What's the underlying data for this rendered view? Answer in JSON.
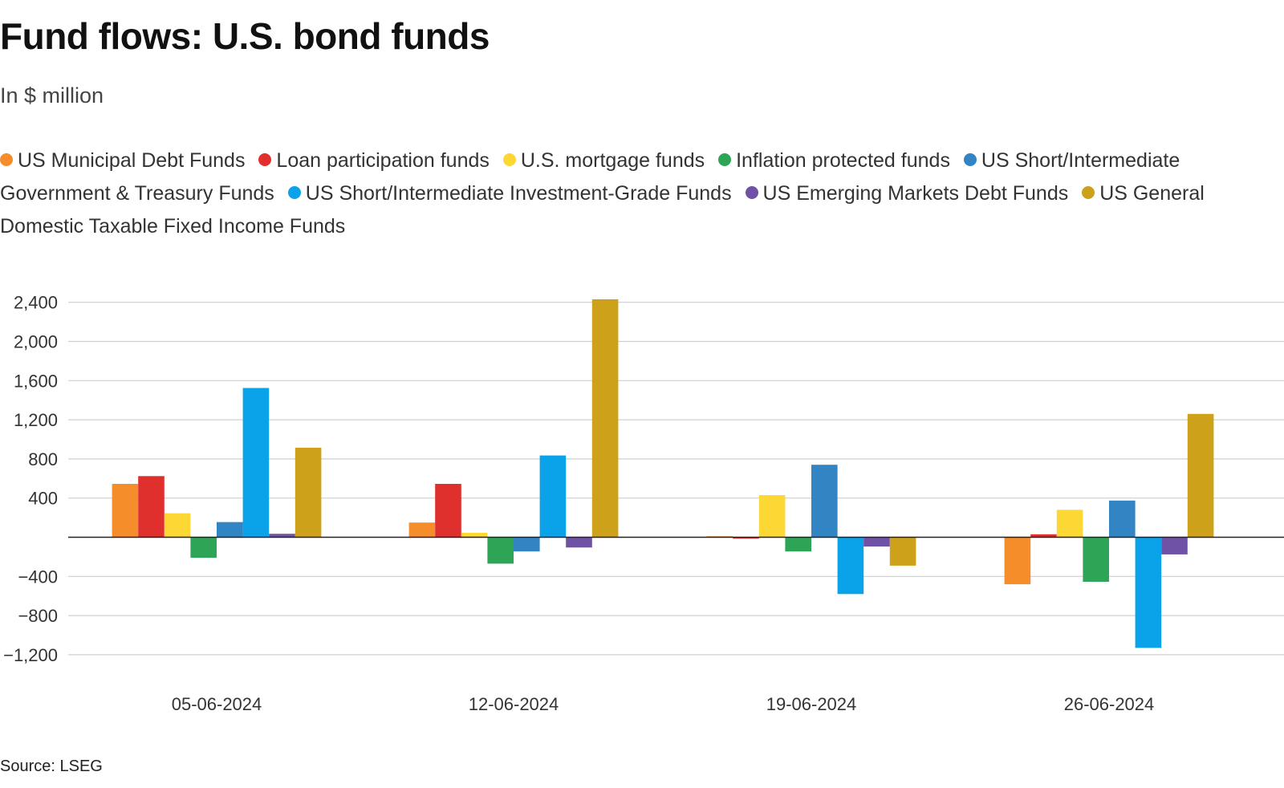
{
  "header": {
    "title": "Fund flows: U.S. bond funds",
    "subtitle": "In $ million"
  },
  "footer": {
    "source": "Source: LSEG"
  },
  "chart_data": {
    "type": "bar",
    "title": "Fund flows: U.S. bond funds",
    "subtitle": "In $ million",
    "xlabel": "",
    "ylabel": "",
    "categories": [
      "05-06-2024",
      "12-06-2024",
      "19-06-2024",
      "26-06-2024"
    ],
    "ylim": [
      -1400,
      2500
    ],
    "yticks": [
      2400,
      2000,
      1600,
      1200,
      800,
      400,
      -400,
      -800,
      -1200
    ],
    "ytick_labels": [
      "2,400",
      "2,000",
      "1,600",
      "1,200",
      "800",
      "400",
      "−400",
      "−800",
      "−1,200"
    ],
    "grid": true,
    "legend_position": "top",
    "series": [
      {
        "name": "US Municipal Debt Funds",
        "color": "#f58d2a",
        "values": [
          545,
          150,
          10,
          -480
        ]
      },
      {
        "name": "Loan participation funds",
        "color": "#e0302e",
        "values": [
          625,
          545,
          -15,
          30
        ]
      },
      {
        "name": "U.S. mortgage funds",
        "color": "#fdd835",
        "values": [
          245,
          45,
          430,
          280
        ]
      },
      {
        "name": "Inflation protected funds",
        "color": "#2ea456",
        "values": [
          -210,
          -270,
          -145,
          -455
        ]
      },
      {
        "name": "US Short/Intermediate Government & Treasury Funds",
        "color": "#3384c2",
        "values": [
          155,
          -145,
          740,
          375
        ]
      },
      {
        "name": "US Short/Intermediate Investment-Grade Funds",
        "color": "#0aa2e9",
        "values": [
          1525,
          835,
          -580,
          -1130
        ]
      },
      {
        "name": "US Emerging Markets Debt Funds",
        "color": "#6f51a5",
        "values": [
          35,
          -105,
          -95,
          -175
        ]
      },
      {
        "name": "US General Domestic Taxable Fixed Income Funds",
        "color": "#cda21a",
        "values": [
          915,
          2430,
          -290,
          1260
        ]
      }
    ]
  }
}
